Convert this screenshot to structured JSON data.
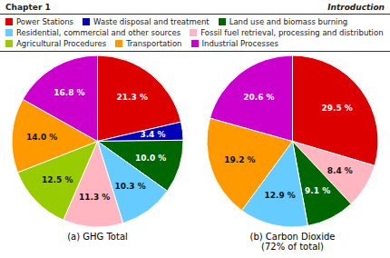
{
  "chart_data": [
    {
      "type": "pie",
      "title": "(a) GHG Total",
      "annotations": [
        "Chapter 1",
        "Introduction"
      ],
      "categories": [
        "Power Stations",
        "Waste disposal and treatment",
        "Land use and biomass burning",
        "Residential, commercial and other sources",
        "Fossil fuel retrieval, processing and distribution",
        "Agricultural Procedures",
        "Transportation",
        "Industrial Processes"
      ],
      "values": [
        21.3,
        3.4,
        10.0,
        10.3,
        11.3,
        12.5,
        14.0,
        16.8
      ],
      "value_labels": [
        "21.3 %",
        "3.4 %",
        "10.0 %",
        "10.3 %",
        "11.3 %",
        "12.5 %",
        "14.0 %",
        "16.8 %"
      ],
      "colors": [
        "#dd0000",
        "#0000bb",
        "#006600",
        "#66ccff",
        "#ffb6c1",
        "#99cc00",
        "#ff9900",
        "#cc00cc"
      ],
      "data_labels": true,
      "legend": "top"
    },
    {
      "type": "pie",
      "title": "(b) Carbon Dioxide\n(72% of total)",
      "values": [
        29.5,
        8.4,
        9.1,
        12.9,
        19.2,
        20.6
      ],
      "value_labels": [
        "29.5 %",
        "8.4 %",
        "9.1 %",
        "12.9 %",
        "19.2 %",
        "20.6 %"
      ],
      "colors": [
        "#dd0000",
        "#ffb6c1",
        "#006600",
        "#66ccff",
        "#ff9900",
        "#cc00cc"
      ],
      "data_labels": true
    }
  ]
}
